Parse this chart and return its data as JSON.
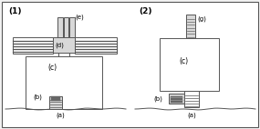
{
  "bg_color": "#f2f2f2",
  "border_color": "#555555",
  "line_color": "#555555",
  "fill_light": "#d8d8d8",
  "fill_white": "#ffffff",
  "fill_dark": "#666666",
  "fig_width": 2.85,
  "fig_height": 1.42,
  "label1": "(1)",
  "label2": "(2)",
  "label_a1": "(a)",
  "label_a2": "(a)",
  "label_b1": "(b)",
  "label_b2": "(b)",
  "label_c1": "(c)",
  "label_c2": "(c)",
  "label_d": "(d)",
  "label_e": "(e)",
  "label_g": "(g)"
}
